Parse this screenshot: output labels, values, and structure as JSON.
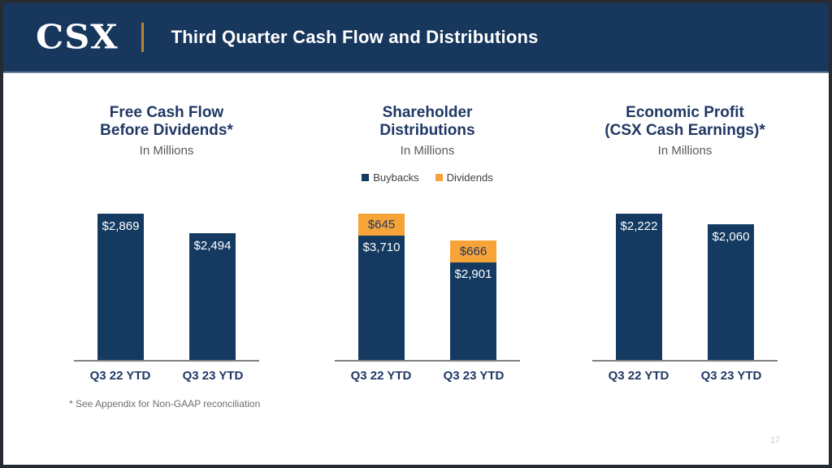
{
  "slide": {
    "logo_text": "CSX",
    "header_title": "Third Quarter Cash Flow and Distributions",
    "footnote": "* See Appendix for Non-GAAP reconciliation",
    "page_number": "17"
  },
  "colors": {
    "header_navy": "#17375D",
    "bar_navy": "#143A61",
    "orange": "#F7A338",
    "gold_divider": "#B78438",
    "title_navy": "#1F3864",
    "subtitle_gray": "#595959",
    "axis_gray": "#808080",
    "footnote_gray": "#6E6E6E",
    "page_gray": "#C2C8D2",
    "border_dark": "#262A33"
  },
  "chart_data": [
    {
      "type": "bar",
      "title_lines": [
        "Free Cash Flow",
        "Before Dividends*"
      ],
      "subtitle": "In Millions",
      "categories": [
        "Q3 22 YTD",
        "Q3 23 YTD"
      ],
      "values": [
        2869,
        2494
      ],
      "labels": [
        "$2,869",
        "$2,494"
      ],
      "ylim": [
        0,
        2869
      ],
      "grid": false,
      "bar_color": "#143A61"
    },
    {
      "type": "stacked-bar",
      "title_lines": [
        "Shareholder",
        "Distributions"
      ],
      "subtitle": "In Millions",
      "categories": [
        "Q3 22 YTD",
        "Q3 23 YTD"
      ],
      "series": [
        {
          "name": "Buybacks",
          "color": "#143A61",
          "values": [
            3710,
            2901
          ],
          "labels": [
            "$3,710",
            "$2,901"
          ]
        },
        {
          "name": "Dividends",
          "color": "#F7A338",
          "values": [
            645,
            666
          ],
          "labels": [
            "$645",
            "$666"
          ]
        }
      ],
      "totals": [
        4355,
        3567
      ],
      "ylim": [
        0,
        4355
      ],
      "grid": false,
      "legend": {
        "position": "top",
        "entries": [
          {
            "label": "Buybacks",
            "color": "#143A61"
          },
          {
            "label": "Dividends",
            "color": "#F7A338"
          }
        ]
      }
    },
    {
      "type": "bar",
      "title_lines": [
        "Economic Profit",
        "(CSX Cash Earnings)*"
      ],
      "subtitle": "In Millions",
      "categories": [
        "Q3 22 YTD",
        "Q3 23 YTD"
      ],
      "values": [
        2222,
        2060
      ],
      "labels": [
        "$2,222",
        "$2,060"
      ],
      "ylim": [
        0,
        2222
      ],
      "grid": false,
      "bar_color": "#143A61"
    }
  ]
}
